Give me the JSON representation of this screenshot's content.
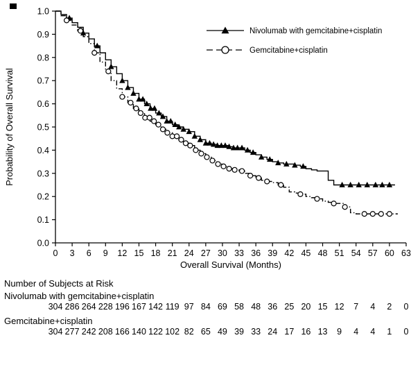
{
  "figure": {
    "y_axis_label": "Probability of Overall Survival",
    "x_axis_label": "Overall Survival (Months)"
  },
  "risk_table": {
    "title": "Number of Subjects at Risk",
    "rows": [
      {
        "label": "Nivolumab with gemcitabine+cisplatin",
        "counts": [
          304,
          286,
          264,
          228,
          196,
          167,
          142,
          119,
          97,
          84,
          69,
          58,
          48,
          36,
          25,
          20,
          15,
          12,
          7,
          4,
          2,
          0
        ]
      },
      {
        "label": "Gemcitabine+cisplatin",
        "counts": [
          304,
          277,
          242,
          208,
          166,
          140,
          122,
          102,
          82,
          65,
          49,
          39,
          33,
          24,
          17,
          16,
          13,
          9,
          4,
          4,
          1,
          0
        ]
      }
    ]
  },
  "chart_data": {
    "type": "line",
    "step": true,
    "title": "",
    "xlabel": "Overall Survival (Months)",
    "ylabel": "Probability of Overall Survival",
    "xlim": [
      0,
      63
    ],
    "ylim": [
      0.0,
      1.0
    ],
    "x_ticks": [
      0,
      3,
      6,
      9,
      12,
      15,
      18,
      21,
      24,
      27,
      30,
      33,
      36,
      39,
      42,
      45,
      48,
      51,
      54,
      57,
      60,
      63
    ],
    "y_ticks": [
      0.0,
      0.1,
      0.2,
      0.3,
      0.4,
      0.5,
      0.6,
      0.7,
      0.8,
      0.9,
      1.0
    ],
    "grid": false,
    "legend_position": "top-right-inside",
    "line_color": "#000000",
    "series": [
      {
        "name": "Nivolumab with gemcitabine+cisplatin",
        "marker": "filled-triangle",
        "line": "solid",
        "x": [
          0,
          1,
          2,
          3,
          4,
          5,
          6,
          7,
          8,
          9,
          10,
          11,
          12,
          13,
          14,
          15,
          16,
          17,
          18,
          19,
          20,
          21,
          22,
          23,
          24,
          25,
          26,
          27,
          28,
          29,
          30,
          31,
          32,
          33,
          34,
          35,
          36,
          37,
          38,
          39,
          40,
          41,
          42,
          43,
          44,
          45,
          46,
          47,
          48,
          49,
          50,
          61
        ],
        "y": [
          1.0,
          0.985,
          0.97,
          0.95,
          0.93,
          0.905,
          0.88,
          0.85,
          0.82,
          0.79,
          0.76,
          0.73,
          0.7,
          0.67,
          0.645,
          0.62,
          0.6,
          0.58,
          0.56,
          0.545,
          0.525,
          0.51,
          0.5,
          0.49,
          0.48,
          0.46,
          0.445,
          0.43,
          0.425,
          0.42,
          0.42,
          0.415,
          0.41,
          0.41,
          0.4,
          0.39,
          0.38,
          0.37,
          0.36,
          0.35,
          0.345,
          0.34,
          0.34,
          0.335,
          0.33,
          0.32,
          0.315,
          0.31,
          0.31,
          0.27,
          0.25,
          0.25
        ],
        "censor_x": [
          2.5,
          5,
          7.5,
          10,
          12,
          13,
          14,
          15,
          15.7,
          16.4,
          17.1,
          17.8,
          18.6,
          19.3,
          20,
          20.7,
          21.5,
          22.2,
          23,
          24,
          25,
          26,
          27,
          27.7,
          28.4,
          29.1,
          29.8,
          30.5,
          31.2,
          32,
          32.7,
          33.5,
          34.5,
          35.5,
          37,
          38.5,
          40,
          41.5,
          43,
          44.5,
          51.5,
          53,
          54.5,
          56,
          57.5,
          58.7,
          60
        ]
      },
      {
        "name": "Gemcitabine+cisplatin",
        "marker": "open-circle",
        "line": "dash-dot",
        "x": [
          0,
          1,
          2,
          3,
          4,
          5,
          6,
          7,
          8,
          9,
          10,
          11,
          12,
          13,
          14,
          15,
          16,
          17,
          18,
          19,
          20,
          21,
          22,
          23,
          24,
          25,
          26,
          27,
          28,
          29,
          30,
          31,
          32,
          33,
          34,
          35,
          36,
          37,
          38,
          39,
          40,
          41,
          42,
          43,
          44,
          45,
          46,
          47,
          48,
          49,
          50,
          51,
          52,
          53,
          54,
          61.5
        ],
        "y": [
          1.0,
          0.98,
          0.96,
          0.94,
          0.915,
          0.89,
          0.86,
          0.82,
          0.78,
          0.74,
          0.7,
          0.665,
          0.63,
          0.605,
          0.58,
          0.56,
          0.54,
          0.525,
          0.51,
          0.49,
          0.475,
          0.46,
          0.445,
          0.43,
          0.42,
          0.4,
          0.385,
          0.37,
          0.355,
          0.34,
          0.33,
          0.32,
          0.315,
          0.31,
          0.3,
          0.29,
          0.28,
          0.27,
          0.265,
          0.26,
          0.25,
          0.24,
          0.22,
          0.215,
          0.21,
          0.2,
          0.195,
          0.19,
          0.18,
          0.175,
          0.17,
          0.17,
          0.155,
          0.13,
          0.125,
          0.125
        ],
        "censor_x": [
          2,
          4.5,
          7,
          9.5,
          12,
          13.5,
          14.5,
          15.3,
          16.1,
          16.9,
          17.7,
          18.5,
          19.3,
          20.1,
          21,
          21.8,
          22.6,
          23.4,
          24.2,
          25.2,
          26.2,
          27.2,
          28.2,
          29.2,
          30.2,
          31.2,
          32.2,
          33.5,
          35,
          36.5,
          38,
          40.5,
          44,
          47,
          50,
          52,
          55.5,
          57,
          58.5,
          60
        ]
      }
    ],
    "at_risk_x": [
      0,
      3,
      6,
      9,
      12,
      15,
      18,
      21,
      24,
      27,
      30,
      33,
      36,
      39,
      42,
      45,
      48,
      51,
      54,
      57,
      60,
      63
    ]
  }
}
